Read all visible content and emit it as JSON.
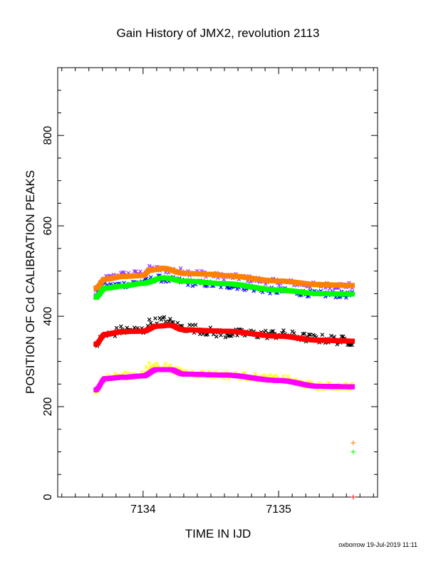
{
  "chart_data": {
    "type": "scatter",
    "title": "Gain History of JMX2, revolution 2113",
    "xlabel": "TIME IN IJD",
    "ylabel": "POSITION OF Cd CALIBRATION PEAKS",
    "footer": "oxborrow 19-Jul-2019 11:11",
    "xlim": [
      7133.37,
      7135.73
    ],
    "ylim": [
      0,
      950
    ],
    "x_ticks": [
      7134,
      7135
    ],
    "x_tick_labels": [
      "7134",
      "7135"
    ],
    "y_ticks": [
      0,
      200,
      400,
      600,
      800
    ],
    "y_tick_labels": [
      "0",
      "200",
      "400",
      "600",
      "800"
    ],
    "grid": false,
    "series": [
      {
        "color": "#9933ff",
        "marker": "x",
        "noise": 7,
        "points": [
          [
            7133.65,
            455
          ],
          [
            7133.72,
            484
          ],
          [
            7133.85,
            492
          ],
          [
            7134.0,
            495
          ],
          [
            7134.05,
            505
          ],
          [
            7134.2,
            502
          ],
          [
            7134.4,
            496
          ],
          [
            7134.6,
            488
          ],
          [
            7135.0,
            476
          ],
          [
            7135.3,
            468
          ],
          [
            7135.55,
            468
          ]
        ]
      },
      {
        "color": "#0000ff",
        "marker": "x",
        "noise": 7,
        "points": [
          [
            7133.65,
            441
          ],
          [
            7133.72,
            466
          ],
          [
            7133.85,
            470
          ],
          [
            7134.0,
            476
          ],
          [
            7134.1,
            484
          ],
          [
            7134.2,
            480
          ],
          [
            7134.4,
            473
          ],
          [
            7134.6,
            468
          ],
          [
            7135.0,
            456
          ],
          [
            7135.3,
            449
          ],
          [
            7135.55,
            447
          ]
        ]
      },
      {
        "color": "#ff8000",
        "marker": "line",
        "noise": 0,
        "points": [
          [
            7133.65,
            462
          ],
          [
            7133.72,
            482
          ],
          [
            7133.85,
            488
          ],
          [
            7134.0,
            490
          ],
          [
            7134.05,
            502
          ],
          [
            7134.15,
            506
          ],
          [
            7134.3,
            495
          ],
          [
            7134.5,
            493
          ],
          [
            7134.6,
            490
          ],
          [
            7135.0,
            478
          ],
          [
            7135.3,
            470
          ],
          [
            7135.55,
            468
          ]
        ]
      },
      {
        "color": "#00ff00",
        "marker": "line",
        "noise": 0,
        "points": [
          [
            7133.65,
            442
          ],
          [
            7133.72,
            462
          ],
          [
            7133.85,
            467
          ],
          [
            7134.0,
            473
          ],
          [
            7134.15,
            485
          ],
          [
            7134.3,
            478
          ],
          [
            7134.6,
            472
          ],
          [
            7135.0,
            458
          ],
          [
            7135.3,
            450
          ],
          [
            7135.55,
            449
          ]
        ]
      },
      {
        "color": "#000000",
        "marker": "x",
        "noise": 10,
        "points": [
          [
            7133.65,
            338
          ],
          [
            7133.72,
            358
          ],
          [
            7133.85,
            369
          ],
          [
            7134.0,
            368
          ],
          [
            7134.05,
            385
          ],
          [
            7134.15,
            390
          ],
          [
            7134.3,
            375
          ],
          [
            7134.6,
            362
          ],
          [
            7135.0,
            360
          ],
          [
            7135.3,
            350
          ],
          [
            7135.55,
            345
          ]
        ]
      },
      {
        "color": "#ff0000",
        "marker": "line",
        "noise": 0,
        "points": [
          [
            7133.65,
            338
          ],
          [
            7133.72,
            360
          ],
          [
            7133.85,
            366
          ],
          [
            7134.0,
            367
          ],
          [
            7134.1,
            378
          ],
          [
            7134.2,
            380
          ],
          [
            7134.3,
            370
          ],
          [
            7134.6,
            367
          ],
          [
            7135.0,
            356
          ],
          [
            7135.3,
            347
          ],
          [
            7135.55,
            345
          ]
        ]
      },
      {
        "color": "#ffff00",
        "marker": "x",
        "noise": 8,
        "points": [
          [
            7133.65,
            238
          ],
          [
            7133.72,
            265
          ],
          [
            7133.85,
            268
          ],
          [
            7134.0,
            272
          ],
          [
            7134.05,
            290
          ],
          [
            7134.15,
            290
          ],
          [
            7134.3,
            275
          ],
          [
            7134.6,
            270
          ],
          [
            7135.0,
            262
          ],
          [
            7135.3,
            245
          ],
          [
            7135.55,
            245
          ]
        ]
      },
      {
        "color": "#ff00ff",
        "marker": "line",
        "noise": 0,
        "points": [
          [
            7133.65,
            237
          ],
          [
            7133.72,
            262
          ],
          [
            7133.85,
            265
          ],
          [
            7134.0,
            268
          ],
          [
            7134.1,
            282
          ],
          [
            7134.2,
            282
          ],
          [
            7134.3,
            272
          ],
          [
            7134.6,
            270
          ],
          [
            7135.0,
            258
          ],
          [
            7135.3,
            245
          ],
          [
            7135.55,
            244
          ]
        ]
      }
    ],
    "outliers": [
      {
        "color": "#ff8000",
        "marker": "+",
        "x": 7135.55,
        "y": 120
      },
      {
        "color": "#00ff00",
        "marker": "+",
        "x": 7135.55,
        "y": 100
      },
      {
        "color": "#ff0000",
        "marker": "+",
        "x": 7135.55,
        "y": 0
      }
    ]
  }
}
